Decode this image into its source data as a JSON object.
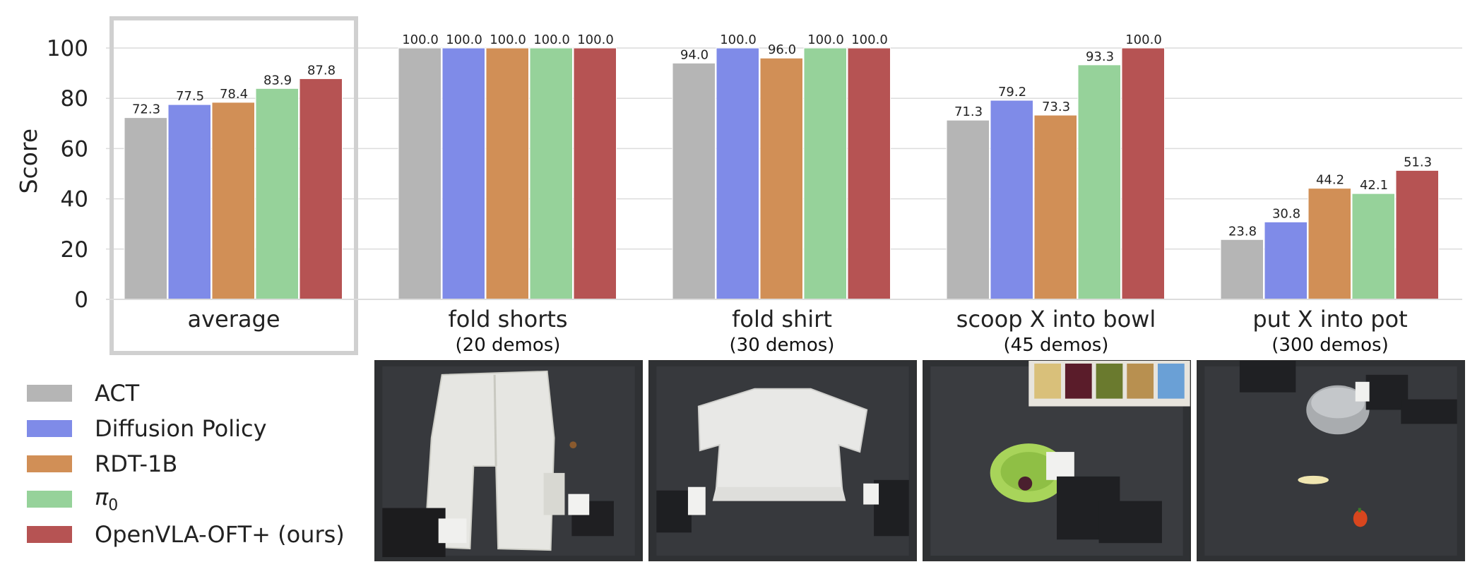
{
  "chart_data": {
    "type": "bar",
    "ylabel": "Score",
    "ylim": [
      0,
      110
    ],
    "yticks": [
      0,
      20,
      40,
      60,
      80,
      100
    ],
    "grid": true,
    "legend_placement": "bottom-left",
    "series": [
      {
        "name": "ACT",
        "color": "#b5b5b5"
      },
      {
        "name": "Diffusion Policy",
        "color": "#7f8be8"
      },
      {
        "name": "RDT-1B",
        "color": "#d18f56"
      },
      {
        "name": "π0",
        "color": "#96d29a"
      },
      {
        "name": "OpenVLA-OFT+ (ours)",
        "color": "#b65353"
      }
    ],
    "groups": [
      {
        "label": "average",
        "sublabel": "",
        "values": [
          72.3,
          77.5,
          78.4,
          83.9,
          87.8
        ],
        "highlight": true
      },
      {
        "label": "fold shorts",
        "sublabel": "(20 demos)",
        "values": [
          100.0,
          100.0,
          100.0,
          100.0,
          100.0
        ]
      },
      {
        "label": "fold shirt",
        "sublabel": "(30 demos)",
        "values": [
          94.0,
          100.0,
          96.0,
          100.0,
          100.0
        ]
      },
      {
        "label": "scoop X into bowl",
        "sublabel": "(45 demos)",
        "values": [
          71.3,
          79.2,
          73.3,
          93.3,
          100.0
        ]
      },
      {
        "label": "put X into pot",
        "sublabel": "(300 demos)",
        "values": [
          23.8,
          30.8,
          44.2,
          42.1,
          51.3
        ]
      }
    ]
  },
  "legend": {
    "items": [
      {
        "label": "ACT",
        "color": "#b5b5b5"
      },
      {
        "label": "Diffusion Policy",
        "color": "#7f8be8"
      },
      {
        "label": "RDT-1B",
        "color": "#d18f56"
      },
      {
        "label": "π0",
        "color": "#96d29a"
      },
      {
        "label": "OpenVLA-OFT+ (ours)",
        "color": "#b65353"
      }
    ]
  },
  "photos": [
    {
      "name": "fold-shorts-photo"
    },
    {
      "name": "fold-shirt-photo"
    },
    {
      "name": "scoop-x-into-bowl-photo"
    },
    {
      "name": "put-x-into-pot-photo"
    }
  ]
}
